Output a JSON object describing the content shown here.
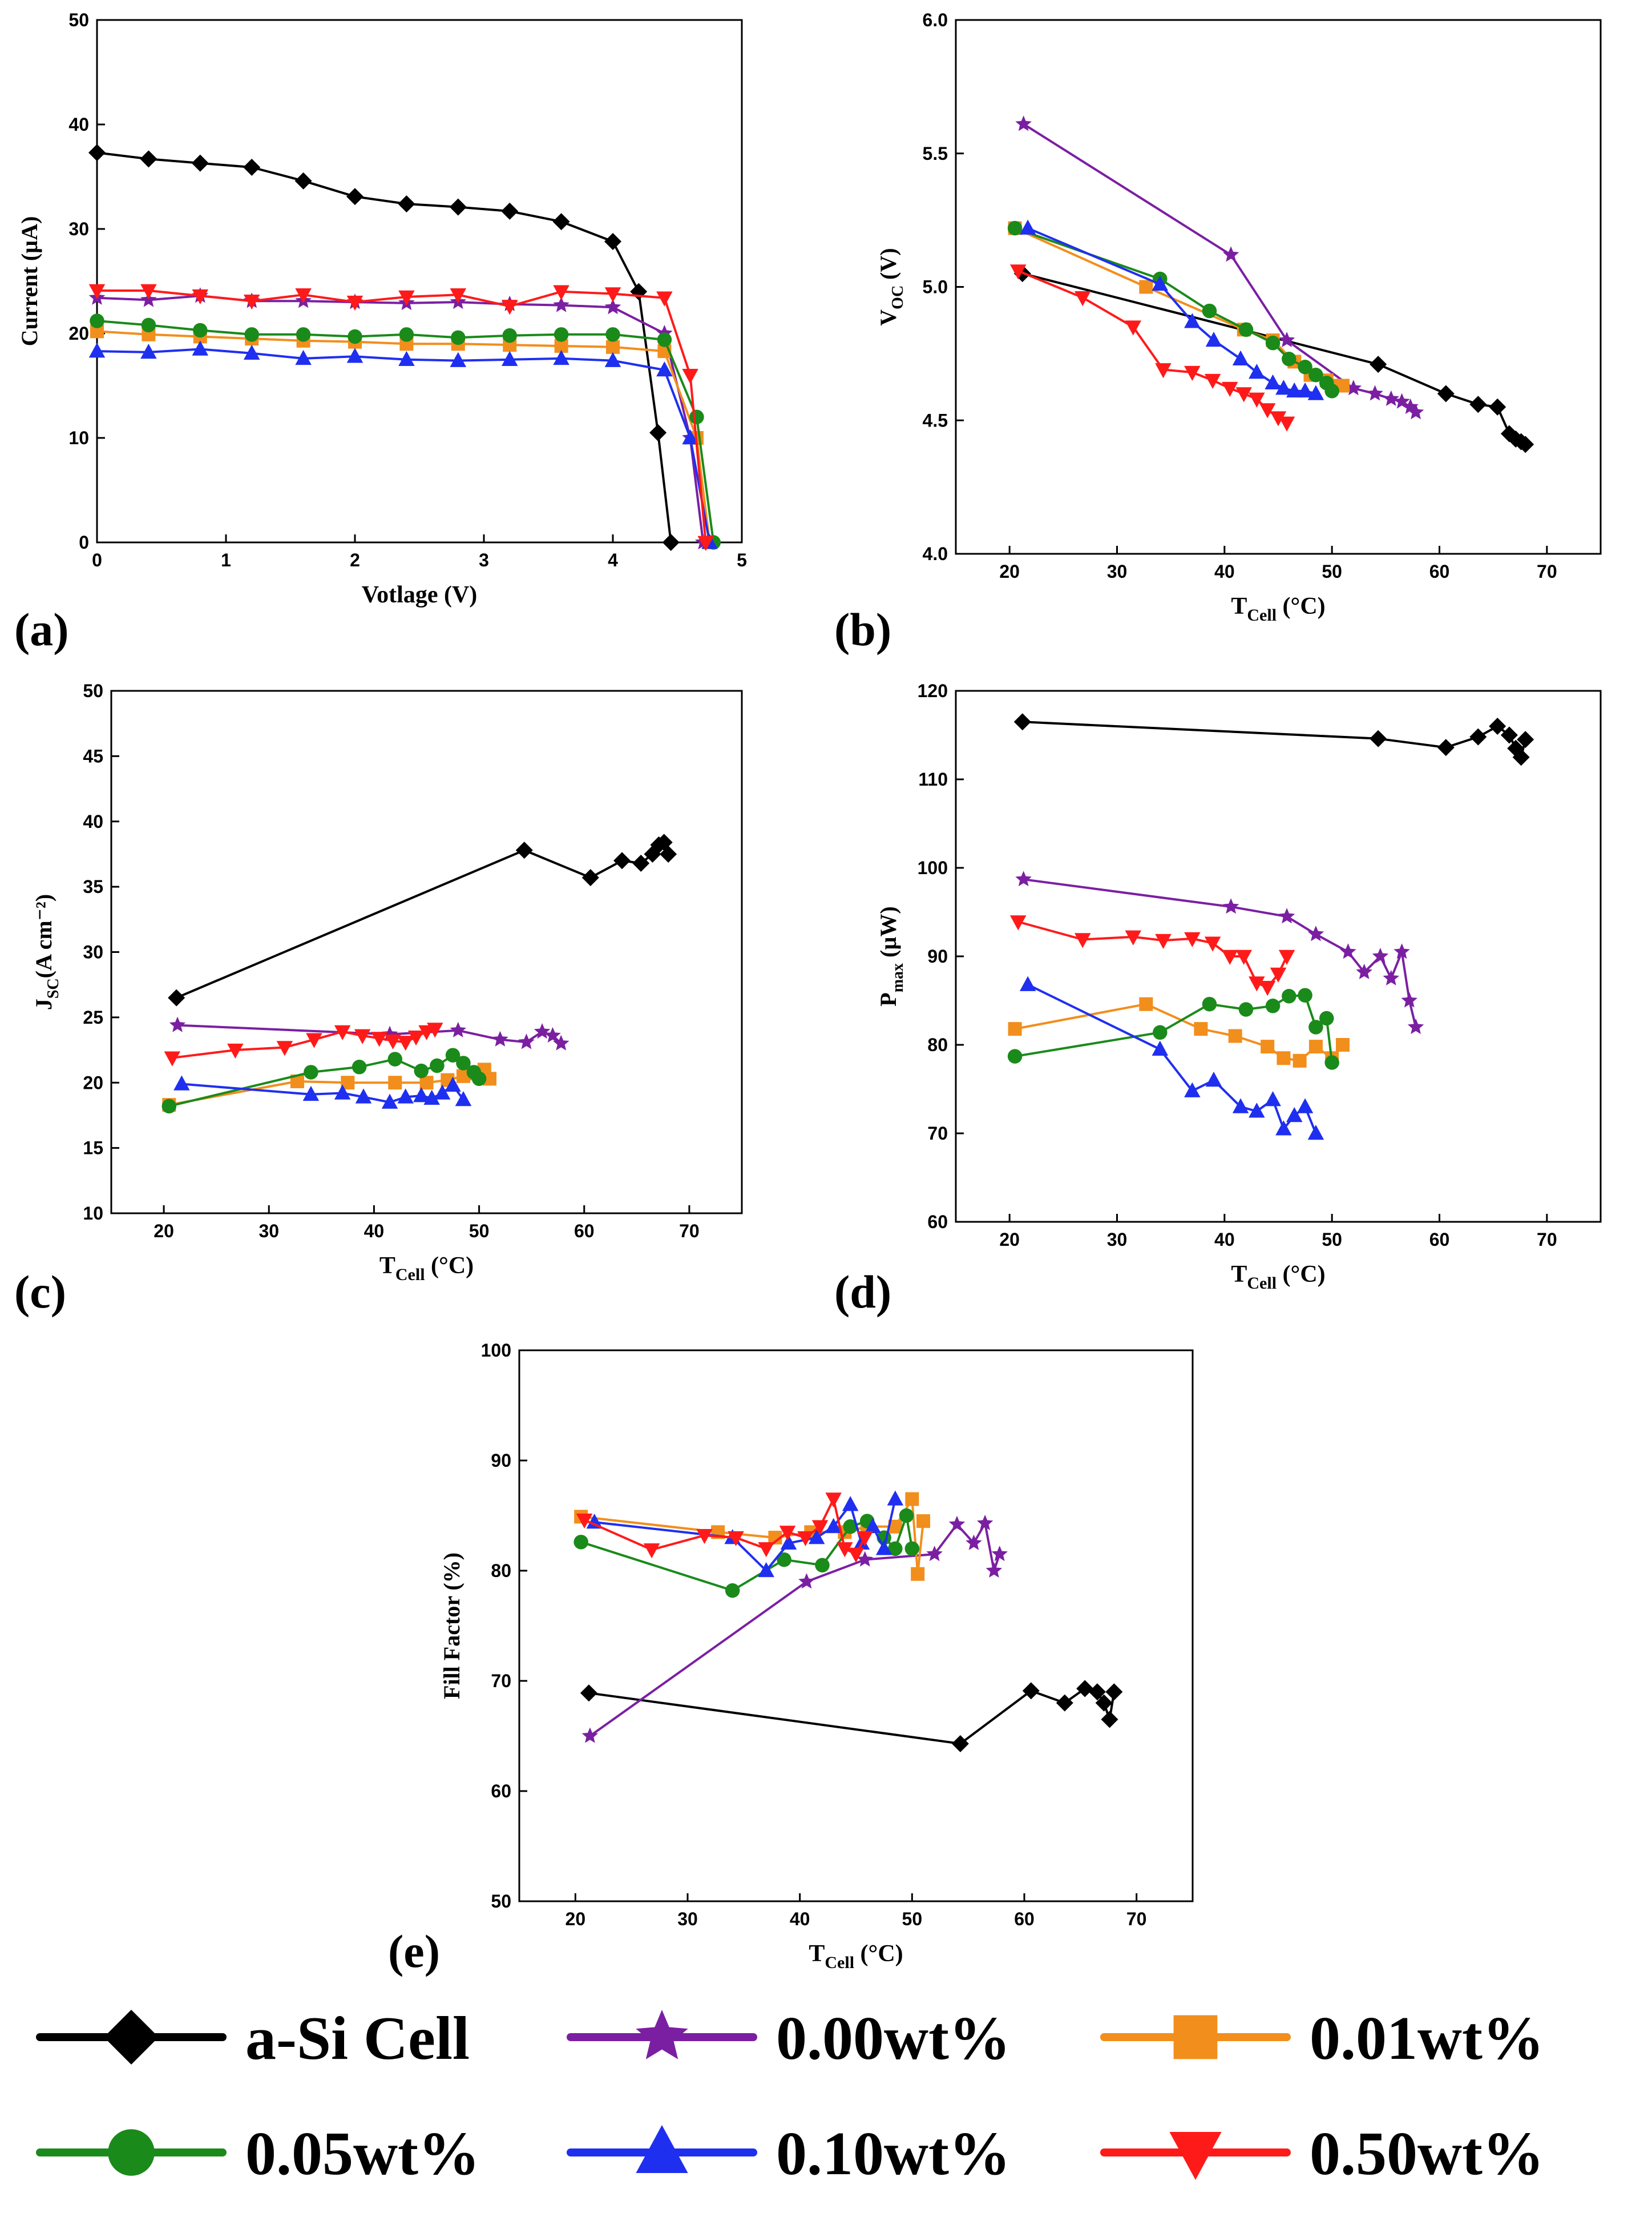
{
  "series_meta": [
    {
      "key": "asi",
      "name": "a-Si Cell",
      "color": "#000000",
      "marker": "diamond"
    },
    {
      "key": "w000",
      "name": "0.00wt%",
      "color": "#7b1fa2",
      "marker": "star"
    },
    {
      "key": "w001",
      "name": "0.01wt%",
      "color": "#f28e1c",
      "marker": "square"
    },
    {
      "key": "w005",
      "name": "0.05wt%",
      "color": "#1a8a1a",
      "marker": "circle"
    },
    {
      "key": "w010",
      "name": "0.10wt%",
      "color": "#1f2ff0",
      "marker": "triangle-up"
    },
    {
      "key": "w050",
      "name": "0.50wt%",
      "color": "#ff1a1a",
      "marker": "triangle-down"
    }
  ],
  "chart_data": [
    {
      "panel": "(a)",
      "type": "line",
      "xlabel": "Votlage (V)",
      "ylabel": "Current (µA)",
      "xlim": [
        0,
        5
      ],
      "ylim": [
        0,
        50
      ],
      "xticks": [
        "0",
        "1",
        "2",
        "3",
        "4",
        "5"
      ],
      "yticks": [
        "0",
        "10",
        "20",
        "30",
        "40",
        "50"
      ],
      "series": [
        {
          "key": "asi",
          "x": [
            0,
            0.4,
            0.8,
            1.2,
            1.6,
            2.0,
            2.4,
            2.8,
            3.2,
            3.6,
            4.0,
            4.2,
            4.35,
            4.45
          ],
          "y": [
            37.3,
            36.7,
            36.3,
            35.9,
            34.6,
            33.1,
            32.4,
            32.1,
            31.7,
            30.7,
            28.8,
            24,
            10.5,
            0
          ]
        },
        {
          "key": "w000",
          "x": [
            0,
            0.4,
            0.8,
            1.2,
            1.6,
            2.0,
            2.4,
            2.8,
            3.2,
            3.6,
            4.0,
            4.4,
            4.6,
            4.7
          ],
          "y": [
            23.4,
            23.2,
            23.6,
            23.1,
            23.1,
            23.0,
            22.9,
            23.0,
            22.8,
            22.7,
            22.5,
            20,
            10,
            0
          ]
        },
        {
          "key": "w001",
          "x": [
            0,
            0.4,
            0.8,
            1.2,
            1.6,
            2.0,
            2.4,
            2.8,
            3.2,
            3.6,
            4.0,
            4.4,
            4.65,
            4.75
          ],
          "y": [
            20.2,
            19.9,
            19.7,
            19.5,
            19.3,
            19.2,
            19.0,
            19.0,
            18.9,
            18.8,
            18.7,
            18.3,
            10,
            0
          ]
        },
        {
          "key": "w005",
          "x": [
            0,
            0.4,
            0.8,
            1.2,
            1.6,
            2.0,
            2.4,
            2.8,
            3.2,
            3.6,
            4.0,
            4.4,
            4.65,
            4.78
          ],
          "y": [
            21.2,
            20.8,
            20.3,
            19.9,
            19.9,
            19.7,
            19.9,
            19.6,
            19.8,
            19.9,
            19.9,
            19.4,
            12,
            0
          ]
        },
        {
          "key": "w010",
          "x": [
            0,
            0.4,
            0.8,
            1.2,
            1.6,
            2.0,
            2.4,
            2.8,
            3.2,
            3.6,
            4.0,
            4.4,
            4.6,
            4.75
          ],
          "y": [
            18.3,
            18.2,
            18.5,
            18.1,
            17.6,
            17.8,
            17.5,
            17.4,
            17.5,
            17.6,
            17.4,
            16.5,
            10,
            0
          ]
        },
        {
          "key": "w050",
          "x": [
            0,
            0.4,
            0.8,
            1.2,
            1.6,
            2.0,
            2.4,
            2.8,
            3.2,
            3.6,
            4.0,
            4.4,
            4.6,
            4.72
          ],
          "y": [
            24.1,
            24.1,
            23.6,
            23.1,
            23.7,
            23.0,
            23.5,
            23.7,
            22.6,
            24.0,
            23.8,
            23.4,
            16,
            0
          ]
        }
      ]
    },
    {
      "panel": "(b)",
      "type": "line",
      "xlabel": "T",
      "xlabel_sub": "Cell",
      "xlabel_unit": " (°C)",
      "ylabel": "V",
      "ylabel_sub": "OC",
      "ylabel_unit": " (V)",
      "xlim": [
        15,
        75
      ],
      "ylim": [
        4.0,
        6.0
      ],
      "xticks": [
        "20",
        "30",
        "40",
        "50",
        "60",
        "70"
      ],
      "yticks": [
        "4.0",
        "4.5",
        "5.0",
        "5.5",
        "6.0"
      ],
      "series": [
        {
          "key": "asi",
          "x": [
            21.2,
            54.3,
            60.6,
            63.6,
            65.4,
            66.5,
            67.1,
            67.6,
            68.0
          ],
          "y": [
            5.05,
            4.71,
            4.6,
            4.56,
            4.55,
            4.45,
            4.43,
            4.42,
            4.41
          ]
        },
        {
          "key": "w000",
          "x": [
            21.3,
            40.6,
            45.8,
            52,
            54,
            55.5,
            56.5,
            57.3,
            57.8
          ],
          "y": [
            5.61,
            5.12,
            4.8,
            4.62,
            4.6,
            4.58,
            4.57,
            4.55,
            4.53
          ]
        },
        {
          "key": "w001",
          "x": [
            20.5,
            32.7,
            41.8,
            44.5,
            46.5,
            48.0,
            49.5,
            50.5,
            51.0
          ],
          "y": [
            5.22,
            5.0,
            4.84,
            4.8,
            4.72,
            4.67,
            4.65,
            4.63,
            4.63
          ]
        },
        {
          "key": "w005",
          "x": [
            20.5,
            34.0,
            38.6,
            42.0,
            44.5,
            46.0,
            47.5,
            48.5,
            49.5,
            50.0
          ],
          "y": [
            5.22,
            5.03,
            4.91,
            4.84,
            4.79,
            4.73,
            4.7,
            4.67,
            4.64,
            4.61
          ]
        },
        {
          "key": "w010",
          "x": [
            21.7,
            34.0,
            37.0,
            39.0,
            41.5,
            43.0,
            44.5,
            45.5,
            46.5,
            47.5,
            48.5
          ],
          "y": [
            5.22,
            5.01,
            4.87,
            4.8,
            4.73,
            4.68,
            4.64,
            4.62,
            4.61,
            4.61,
            4.6
          ]
        },
        {
          "key": "w050",
          "x": [
            20.8,
            26.8,
            31.5,
            34.3,
            37.0,
            38.9,
            40.5,
            41.8,
            43.0,
            44.0,
            45.0,
            45.8
          ],
          "y": [
            5.06,
            4.96,
            4.85,
            4.69,
            4.68,
            4.65,
            4.62,
            4.6,
            4.58,
            4.54,
            4.51,
            4.49
          ]
        }
      ]
    },
    {
      "panel": "(c)",
      "type": "line",
      "xlabel": "T",
      "xlabel_sub": "Cell",
      "xlabel_unit": " (°C)",
      "ylabel": "J",
      "ylabel_sub": "SC",
      "ylabel_unit": "(A cm⁻²)",
      "xlim": [
        15,
        75
      ],
      "ylim": [
        10,
        50
      ],
      "xticks": [
        "20",
        "30",
        "40",
        "50",
        "60",
        "70"
      ],
      "yticks": [
        "10",
        "15",
        "20",
        "25",
        "30",
        "35",
        "40",
        "45",
        "50"
      ],
      "series": [
        {
          "key": "asi",
          "x": [
            21.2,
            54.3,
            60.6,
            63.6,
            65.4,
            66.5,
            67.1,
            67.6,
            68.0
          ],
          "y": [
            26.5,
            37.8,
            35.7,
            37.0,
            36.8,
            37.5,
            38.2,
            38.4,
            37.5
          ]
        },
        {
          "key": "w000",
          "x": [
            21.3,
            41.5,
            48.0,
            52.0,
            54.5,
            56.0,
            57.0,
            57.8
          ],
          "y": [
            24.4,
            23.7,
            24.0,
            23.3,
            23.1,
            23.9,
            23.6,
            23.0
          ]
        },
        {
          "key": "w001",
          "x": [
            20.5,
            32.7,
            37.5,
            42.0,
            45.0,
            47.0,
            48.5,
            49.5,
            50.5,
            51.0
          ],
          "y": [
            18.3,
            20.1,
            20.0,
            20.0,
            20.0,
            20.2,
            20.5,
            20.7,
            21.0,
            20.3
          ]
        },
        {
          "key": "w005",
          "x": [
            20.5,
            34.0,
            38.6,
            42.0,
            44.5,
            46.0,
            47.5,
            48.5,
            49.5,
            50.0
          ],
          "y": [
            18.2,
            20.8,
            21.2,
            21.8,
            20.9,
            21.3,
            22.1,
            21.5,
            20.8,
            20.3
          ]
        },
        {
          "key": "w010",
          "x": [
            21.7,
            34.0,
            37.0,
            39.0,
            41.5,
            43.0,
            44.5,
            45.5,
            46.5,
            47.5,
            48.5
          ],
          "y": [
            19.9,
            19.1,
            19.2,
            18.9,
            18.5,
            18.9,
            19.0,
            18.8,
            19.2,
            19.8,
            18.7
          ]
        },
        {
          "key": "w050",
          "x": [
            20.8,
            26.8,
            31.5,
            34.3,
            37.0,
            38.9,
            40.5,
            41.8,
            43.0,
            44.0,
            45.0,
            45.8
          ],
          "y": [
            21.9,
            22.5,
            22.7,
            23.3,
            23.9,
            23.6,
            23.4,
            23.2,
            23.1,
            23.5,
            23.9,
            24.1
          ]
        }
      ]
    },
    {
      "panel": "(d)",
      "type": "line",
      "xlabel": "T",
      "xlabel_sub": "Cell",
      "xlabel_unit": " (°C)",
      "ylabel": "P",
      "ylabel_sub": "max",
      "ylabel_unit": " (µW)",
      "xlim": [
        15,
        75
      ],
      "ylim": [
        60,
        120
      ],
      "xticks": [
        "20",
        "30",
        "40",
        "50",
        "60",
        "70"
      ],
      "yticks": [
        "60",
        "70",
        "80",
        "90",
        "100",
        "110",
        "120"
      ],
      "series": [
        {
          "key": "asi",
          "x": [
            21.2,
            54.3,
            60.6,
            63.6,
            65.4,
            66.5,
            67.1,
            67.6,
            68.0
          ],
          "y": [
            116.5,
            114.6,
            113.6,
            114.8,
            116.0,
            115.0,
            113.5,
            112.5,
            114.5
          ]
        },
        {
          "key": "w000",
          "x": [
            21.3,
            40.6,
            45.8,
            48.5,
            51.5,
            53.0,
            54.5,
            55.5,
            56.5,
            57.2,
            57.8
          ],
          "y": [
            98.7,
            95.6,
            94.5,
            92.5,
            90.5,
            88.2,
            90.0,
            87.5,
            90.5,
            85.0,
            82.0
          ]
        },
        {
          "key": "w001",
          "x": [
            20.5,
            32.7,
            37.8,
            41.0,
            44.0,
            45.5,
            47.0,
            48.5,
            50.0,
            51.0
          ],
          "y": [
            81.8,
            84.6,
            81.8,
            81.0,
            79.8,
            78.5,
            78.2,
            79.8,
            78.5,
            80.0
          ]
        },
        {
          "key": "w005",
          "x": [
            20.5,
            34.0,
            38.6,
            42.0,
            44.5,
            46.0,
            47.5,
            48.5,
            49.5,
            50.0
          ],
          "y": [
            78.7,
            81.4,
            84.6,
            84.0,
            84.4,
            85.5,
            85.6,
            82.0,
            83.0,
            78.0
          ]
        },
        {
          "key": "w010",
          "x": [
            21.7,
            34.0,
            37.0,
            39.0,
            41.5,
            43.0,
            44.5,
            45.5,
            46.5,
            47.5,
            48.5
          ],
          "y": [
            86.8,
            79.5,
            74.8,
            76.0,
            73.0,
            72.5,
            73.8,
            70.5,
            72.0,
            73.0,
            70.0
          ]
        },
        {
          "key": "w050",
          "x": [
            20.8,
            26.8,
            31.5,
            34.3,
            37.0,
            38.9,
            40.5,
            41.8,
            43.0,
            44.0,
            45.0,
            45.8
          ],
          "y": [
            93.9,
            91.9,
            92.2,
            91.8,
            92.0,
            91.5,
            90.0,
            90.0,
            87.0,
            86.5,
            88.0,
            90.0
          ]
        }
      ]
    },
    {
      "panel": "(e)",
      "type": "line",
      "xlabel": "T",
      "xlabel_sub": "Cell",
      "xlabel_unit": " (°C)",
      "ylabel": "Fill Factor (%)",
      "xlim": [
        15,
        75
      ],
      "ylim": [
        50,
        100
      ],
      "xticks": [
        "20",
        "30",
        "40",
        "50",
        "60",
        "70"
      ],
      "yticks": [
        "50",
        "60",
        "70",
        "80",
        "90",
        "100"
      ],
      "series": [
        {
          "key": "asi",
          "x": [
            21.2,
            54.3,
            60.6,
            63.6,
            65.4,
            66.5,
            67.1,
            67.6,
            68.0
          ],
          "y": [
            68.9,
            64.3,
            69.1,
            68.0,
            69.3,
            69.0,
            68.0,
            66.5,
            69.0
          ]
        },
        {
          "key": "w000",
          "x": [
            21.3,
            40.6,
            45.8,
            52.0,
            54.0,
            55.5,
            56.5,
            57.3,
            57.8
          ],
          "y": [
            65.0,
            79.0,
            81.0,
            81.5,
            84.2,
            82.5,
            84.3,
            80.0,
            81.5
          ]
        },
        {
          "key": "w001",
          "x": [
            20.5,
            32.7,
            37.8,
            41.0,
            44.0,
            46.0,
            48.5,
            50.0,
            50.5,
            51.0
          ],
          "y": [
            84.9,
            83.5,
            83.0,
            83.5,
            83.5,
            84.0,
            84.0,
            86.5,
            79.7,
            84.5
          ]
        },
        {
          "key": "w005",
          "x": [
            20.5,
            34.0,
            38.6,
            42.0,
            44.5,
            46.0,
            47.5,
            48.5,
            49.5,
            50.0
          ],
          "y": [
            82.6,
            78.2,
            81.0,
            80.5,
            84.0,
            84.5,
            83.0,
            82.0,
            85.0,
            82.0
          ]
        },
        {
          "key": "w010",
          "x": [
            21.7,
            34.0,
            37.0,
            39.0,
            41.5,
            43.0,
            44.5,
            45.5,
            46.5,
            47.5,
            48.5
          ],
          "y": [
            84.4,
            83.0,
            80.0,
            82.5,
            83.0,
            84.0,
            86.0,
            82.5,
            84.0,
            82.0,
            86.5
          ]
        },
        {
          "key": "w050",
          "x": [
            20.8,
            26.8,
            31.5,
            34.3,
            37.0,
            38.9,
            40.5,
            41.8,
            43.0,
            44.0,
            45.0,
            45.8
          ],
          "y": [
            84.6,
            81.9,
            83.2,
            83.0,
            82.0,
            83.5,
            83.0,
            84.0,
            86.5,
            82.0,
            81.5,
            83.0
          ]
        }
      ]
    }
  ]
}
